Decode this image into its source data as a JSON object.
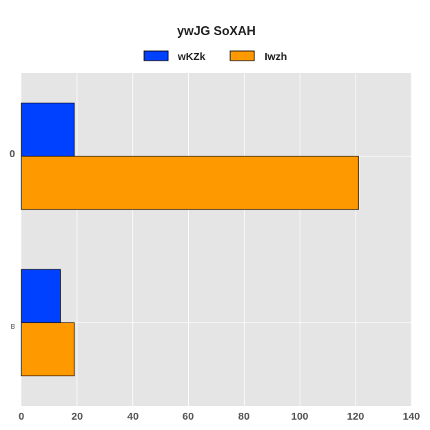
{
  "chart_data": {
    "type": "bar",
    "orientation": "horizontal",
    "title": "ywJG SoXAH",
    "categories": [
      "0",
      "B"
    ],
    "series": [
      {
        "name": "wKZk",
        "color": "#0040ff",
        "values": [
          19,
          14
        ]
      },
      {
        "name": "Iwzh",
        "color": "#ff9900",
        "values": [
          121,
          19
        ]
      }
    ],
    "xlim": [
      0,
      140
    ],
    "xticks": [
      "0",
      "20",
      "40",
      "60",
      "80",
      "100",
      "120",
      "140"
    ],
    "xlabel": "",
    "ylabel": "",
    "grid": true,
    "legend_position": "top-center",
    "plot_background": "#e5e5e5",
    "grid_color": "#ffffff"
  }
}
